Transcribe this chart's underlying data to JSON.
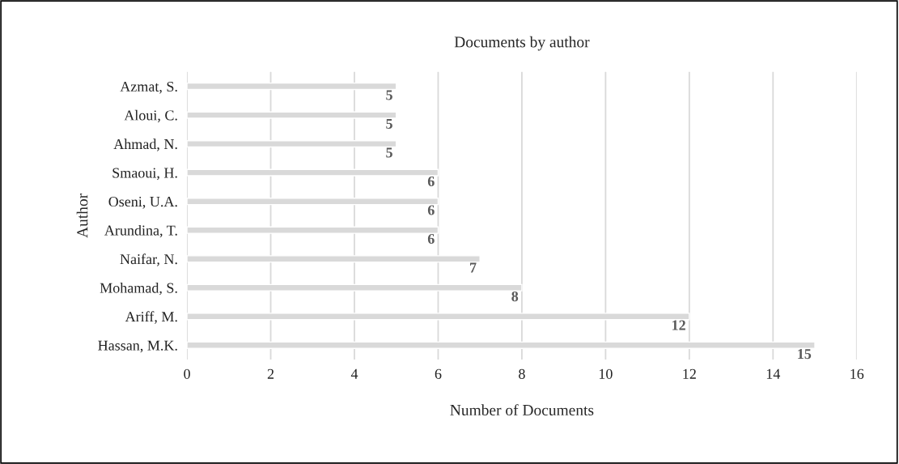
{
  "chart_data": {
    "type": "bar",
    "orientation": "horizontal",
    "title": "Documents by author",
    "xlabel": "Number of Documents",
    "ylabel": "Author",
    "categories": [
      "Azmat, S.",
      "Aloui, C.",
      "Ahmad, N.",
      "Smaoui, H.",
      "Oseni, U.A.",
      "Arundina, T.",
      "Naifar, N.",
      "Mohamad, S.",
      "Ariff, M.",
      "Hassan, M.K."
    ],
    "values": [
      5,
      5,
      5,
      6,
      6,
      6,
      7,
      8,
      12,
      15
    ],
    "color": "#d9d9d9",
    "xlim": [
      0,
      16
    ],
    "xticks": [
      0,
      2,
      4,
      6,
      8,
      10,
      12,
      14,
      16
    ],
    "grid": "x",
    "data_labels": true
  }
}
